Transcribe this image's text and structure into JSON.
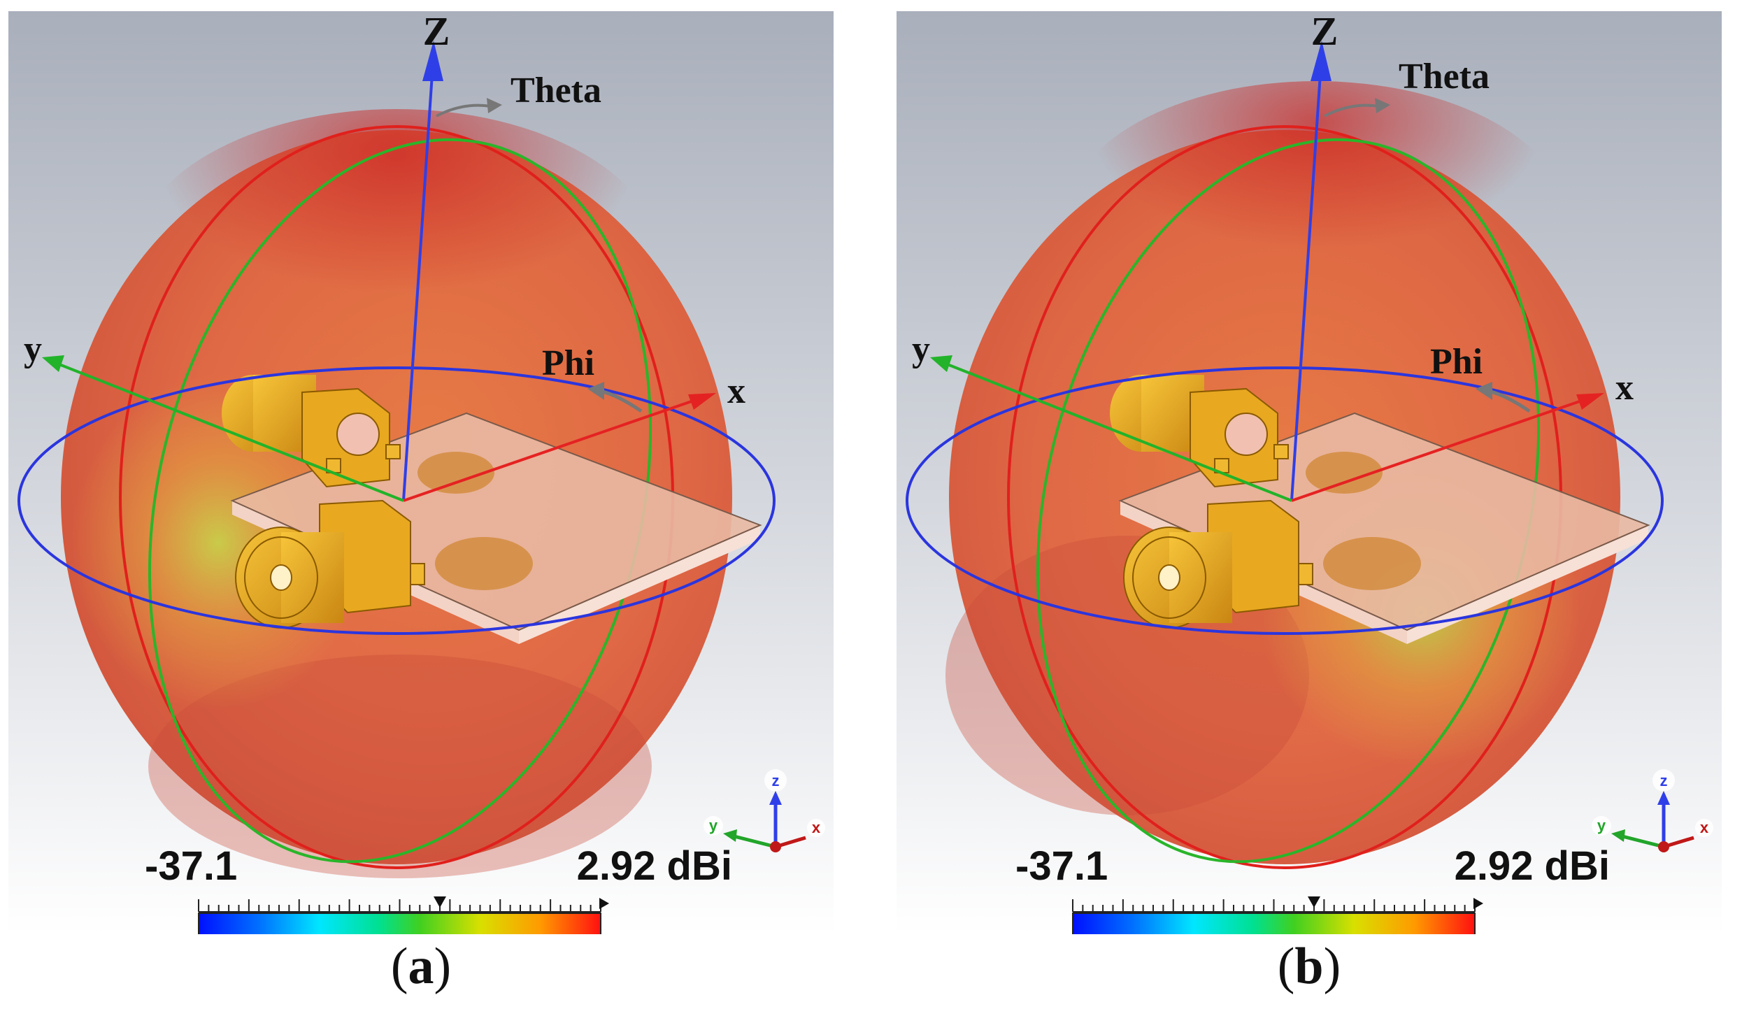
{
  "colors": {
    "background_top": "#a9afbb",
    "background_bottom": "#ffffff",
    "pattern_red": "#d83a2c",
    "pattern_orange": "#e8733a",
    "pattern_yellowgreen": "#c8c84a",
    "z_axis": "#2f3fe8",
    "x_axis": "#e52222",
    "y_axis": "#22b32a",
    "circle_red": "#e0201c",
    "circle_green": "#2ab52a",
    "circle_blue": "#2b35de",
    "connector_gold": "#e6a81e",
    "substrate": "#f0c8b8"
  },
  "panels": [
    {
      "id": "a",
      "caption_letter": "a",
      "axes": {
        "z_label": "Z",
        "x_label": "x",
        "y_label": "y",
        "theta_label": "Theta",
        "phi_label": "Phi"
      },
      "triad": {
        "z": "z",
        "x": "x",
        "y": "y"
      },
      "scale": {
        "min_label": "-37.1",
        "max_label": "2.92 dBi",
        "min_value": -37.1,
        "max_value": 2.92,
        "marker_fraction": 0.6
      },
      "hotspot": "left"
    },
    {
      "id": "b",
      "caption_letter": "b",
      "axes": {
        "z_label": "Z",
        "x_label": "x",
        "y_label": "y",
        "theta_label": "Theta",
        "phi_label": "Phi"
      },
      "triad": {
        "z": "z",
        "x": "x",
        "y": "y"
      },
      "scale": {
        "min_label": "-37.1",
        "max_label": "2.92 dBi",
        "min_value": -37.1,
        "max_value": 2.92,
        "marker_fraction": 0.6
      },
      "hotspot": "right"
    }
  ]
}
